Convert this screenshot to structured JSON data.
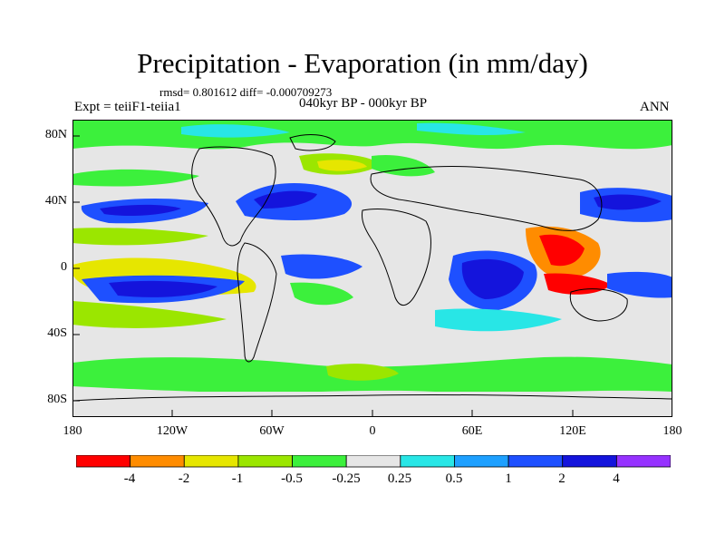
{
  "title": "Precipitation - Evaporation (in mm/day)",
  "stats": "rmsd= 0.801612 diff= -0.000709273",
  "experiment": "Expt = teiiF1-teiia1",
  "period": "040kyr BP - 000kyr BP",
  "season": "ANN",
  "lat_labels": [
    "80N",
    "40N",
    "0",
    "40S",
    "80S"
  ],
  "lon_labels": [
    "180",
    "120W",
    "60W",
    "0",
    "60E",
    "120E",
    "180"
  ],
  "colorbar": {
    "labels": [
      "-4",
      "-2",
      "-1",
      "-0.5",
      "-0.25",
      "0.25",
      "0.5",
      "1",
      "2",
      "4"
    ],
    "colors": [
      "#ff0000",
      "#ff8c00",
      "#e6e600",
      "#9be600",
      "#3cf03c",
      "#e6e6e6",
      "#28e6e6",
      "#1ea0ff",
      "#1e50ff",
      "#1414dc",
      "#9632ff"
    ]
  }
}
